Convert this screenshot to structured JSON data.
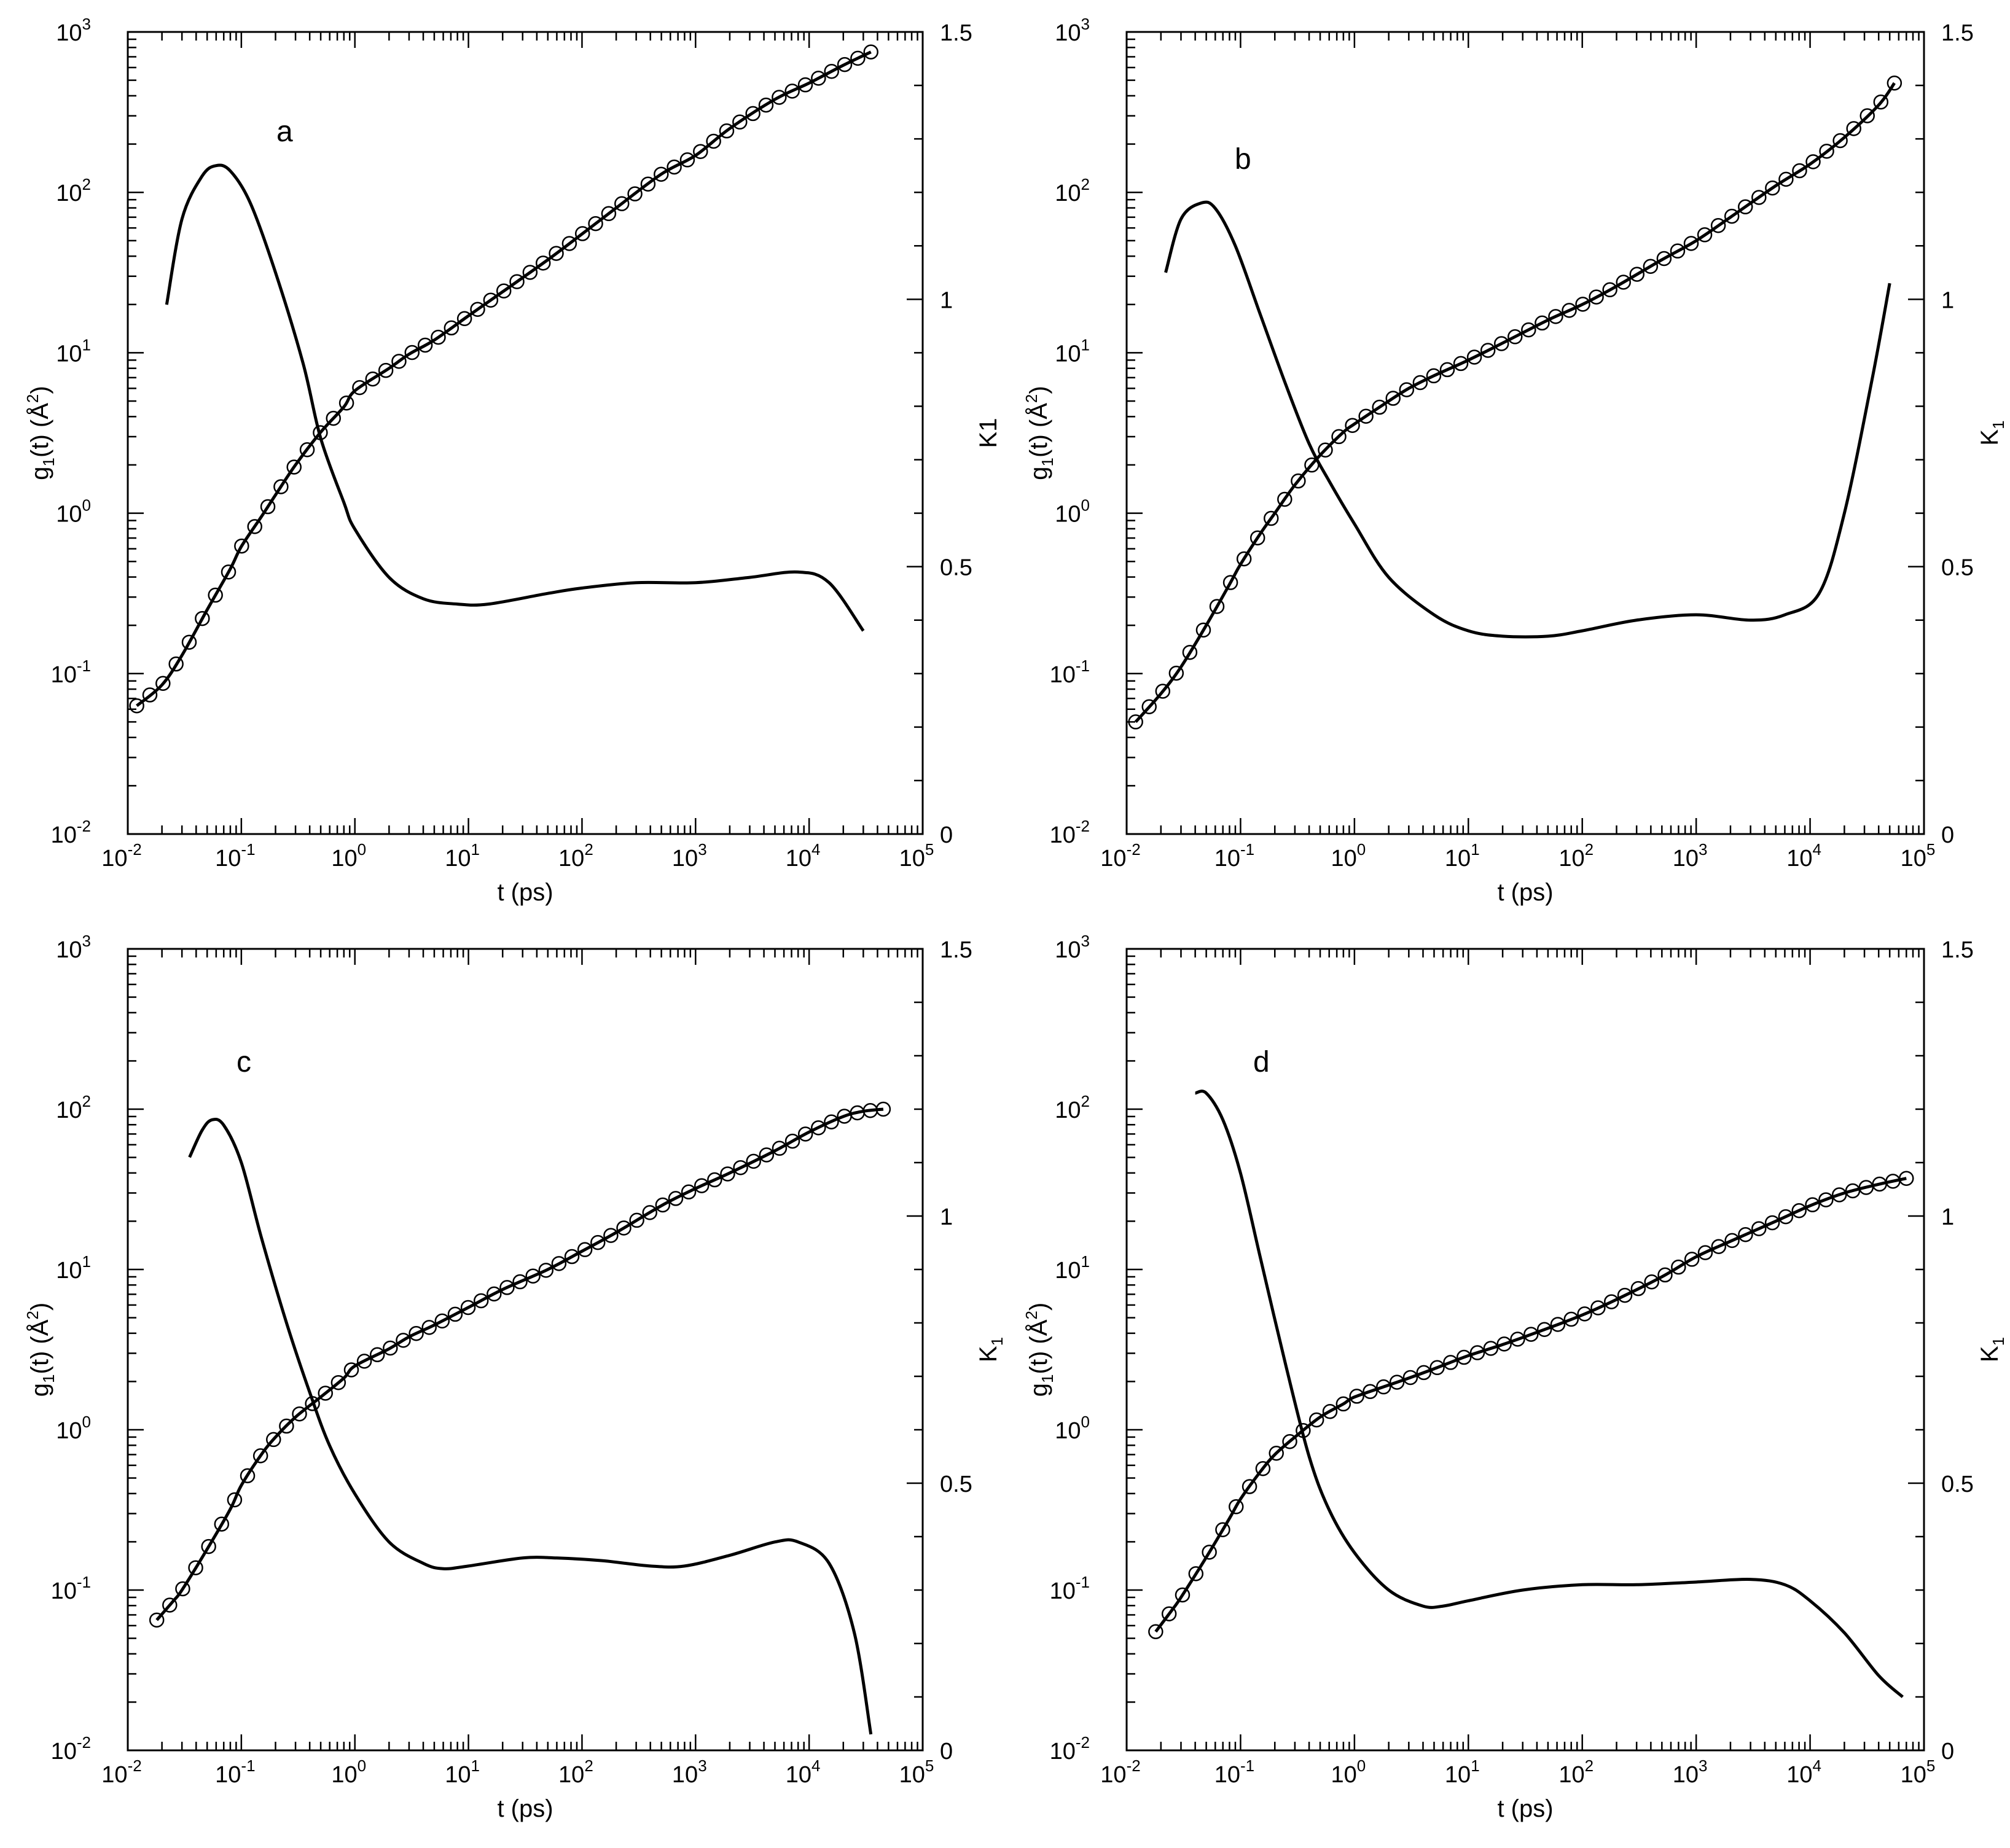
{
  "chart_data": [
    {
      "type": "line",
      "panel_label": "a",
      "x": {
        "label": "t (ps)",
        "scale": "log",
        "lim": [
          0.01,
          100000
        ],
        "ticks": [
          "10",
          "10",
          "10",
          "10",
          "10",
          "10",
          "10",
          "10"
        ],
        "tick_exponents": [
          "-2",
          "-1",
          "0",
          "1",
          "2",
          "3",
          "4",
          "5"
        ]
      },
      "y_left": {
        "label_main": "g",
        "label_sub": "1",
        "label_rest": "(t) (Å",
        "label_sup": "2",
        "label_end": ")",
        "scale": "log",
        "lim": [
          0.01,
          1000
        ],
        "tick_exponents": [
          "-2",
          "-1",
          "0",
          "1",
          "2",
          "3"
        ]
      },
      "y_right": {
        "label_main": "K1",
        "label_sub": "",
        "scale": "linear",
        "lim": [
          0,
          1.5
        ],
        "ticks": [
          "0",
          "0.5",
          "1",
          "1.5"
        ]
      },
      "series": [
        {
          "axis": "left",
          "style": "line-with-circles",
          "points": [
            [
              0.012,
              0.063
            ],
            [
              0.02,
              0.085
            ],
            [
              0.03,
              0.13
            ],
            [
              0.05,
              0.25
            ],
            [
              0.08,
              0.45
            ],
            [
              0.1,
              0.62
            ],
            [
              0.15,
              0.95
            ],
            [
              0.2,
              1.3
            ],
            [
              0.3,
              2.0
            ],
            [
              0.5,
              3.2
            ],
            [
              0.8,
              4.6
            ],
            [
              1,
              5.8
            ],
            [
              2,
              8.0
            ],
            [
              3,
              9.8
            ],
            [
              5,
              12
            ],
            [
              10,
              17
            ],
            [
              20,
              24
            ],
            [
              50,
              38
            ],
            [
              100,
              55
            ],
            [
              200,
              80
            ],
            [
              500,
              130
            ],
            [
              1000,
              170
            ],
            [
              2000,
              250
            ],
            [
              5000,
              380
            ],
            [
              10000,
              480
            ],
            [
              20000,
              620
            ],
            [
              35000,
              750
            ]
          ]
        },
        {
          "axis": "right",
          "style": "line",
          "points": [
            [
              0.022,
              0.99
            ],
            [
              0.03,
              1.15
            ],
            [
              0.045,
              1.23
            ],
            [
              0.06,
              1.25
            ],
            [
              0.08,
              1.24
            ],
            [
              0.12,
              1.18
            ],
            [
              0.2,
              1.05
            ],
            [
              0.35,
              0.88
            ],
            [
              0.5,
              0.74
            ],
            [
              0.8,
              0.62
            ],
            [
              1,
              0.57
            ],
            [
              2,
              0.48
            ],
            [
              4,
              0.44
            ],
            [
              8,
              0.43
            ],
            [
              15,
              0.43
            ],
            [
              50,
              0.45
            ],
            [
              100,
              0.46
            ],
            [
              300,
              0.47
            ],
            [
              1000,
              0.47
            ],
            [
              3000,
              0.48
            ],
            [
              8000,
              0.49
            ],
            [
              15000,
              0.47
            ],
            [
              30000,
              0.38
            ]
          ]
        }
      ]
    },
    {
      "type": "line",
      "panel_label": "b",
      "x": {
        "label": "t (ps)",
        "scale": "log",
        "lim": [
          0.01,
          100000
        ],
        "tick_exponents": [
          "-2",
          "-1",
          "0",
          "1",
          "2",
          "3",
          "4",
          "5"
        ]
      },
      "y_left": {
        "label_main": "g",
        "label_sub": "1",
        "label_rest": "(t) (Å",
        "label_sup": "2",
        "label_end": ")",
        "scale": "log",
        "lim": [
          0.01,
          1000
        ],
        "tick_exponents": [
          "-2",
          "-1",
          "0",
          "1",
          "2",
          "3"
        ]
      },
      "y_right": {
        "label_main": "K",
        "label_sub": "1",
        "scale": "linear",
        "lim": [
          0,
          1.5
        ],
        "ticks": [
          "0",
          "0.5",
          "1",
          "1.5"
        ]
      },
      "series": [
        {
          "axis": "left",
          "style": "line-with-circles",
          "points": [
            [
              0.012,
              0.05
            ],
            [
              0.02,
              0.075
            ],
            [
              0.03,
              0.11
            ],
            [
              0.05,
              0.2
            ],
            [
              0.08,
              0.36
            ],
            [
              0.1,
              0.48
            ],
            [
              0.15,
              0.75
            ],
            [
              0.2,
              1.0
            ],
            [
              0.3,
              1.5
            ],
            [
              0.5,
              2.3
            ],
            [
              0.8,
              3.2
            ],
            [
              1,
              3.6
            ],
            [
              2,
              5.0
            ],
            [
              3,
              6.0
            ],
            [
              5,
              7.2
            ],
            [
              10,
              9.0
            ],
            [
              20,
              11.5
            ],
            [
              50,
              16
            ],
            [
              100,
              20
            ],
            [
              200,
              26
            ],
            [
              500,
              38
            ],
            [
              1000,
              50
            ],
            [
              2000,
              70
            ],
            [
              5000,
              110
            ],
            [
              10000,
              150
            ],
            [
              20000,
              220
            ],
            [
              40000,
              350
            ],
            [
              55000,
              480
            ]
          ]
        },
        {
          "axis": "right",
          "style": "line",
          "points": [
            [
              0.022,
              1.05
            ],
            [
              0.03,
              1.15
            ],
            [
              0.045,
              1.18
            ],
            [
              0.06,
              1.17
            ],
            [
              0.09,
              1.1
            ],
            [
              0.15,
              0.97
            ],
            [
              0.25,
              0.84
            ],
            [
              0.4,
              0.73
            ],
            [
              0.6,
              0.66
            ],
            [
              1,
              0.58
            ],
            [
              2,
              0.48
            ],
            [
              5,
              0.41
            ],
            [
              10,
              0.38
            ],
            [
              20,
              0.37
            ],
            [
              50,
              0.37
            ],
            [
              100,
              0.38
            ],
            [
              300,
              0.4
            ],
            [
              1000,
              0.41
            ],
            [
              3000,
              0.4
            ],
            [
              6000,
              0.41
            ],
            [
              12000,
              0.45
            ],
            [
              20000,
              0.6
            ],
            [
              35000,
              0.85
            ],
            [
              50000,
              1.03
            ]
          ]
        }
      ]
    },
    {
      "type": "line",
      "panel_label": "c",
      "x": {
        "label": "t (ps)",
        "scale": "log",
        "lim": [
          0.01,
          100000
        ],
        "tick_exponents": [
          "-2",
          "-1",
          "0",
          "1",
          "2",
          "3",
          "4",
          "5"
        ]
      },
      "y_left": {
        "label_main": "g",
        "label_sub": "1",
        "label_rest": "(t) (Å",
        "label_sup": "2",
        "label_end": ")",
        "scale": "log",
        "lim": [
          0.01,
          1000
        ],
        "tick_exponents": [
          "-2",
          "-1",
          "0",
          "1",
          "2",
          "3"
        ]
      },
      "y_right": {
        "label_main": "K",
        "label_sub": "1",
        "scale": "linear",
        "lim": [
          0,
          1.5
        ],
        "ticks": [
          "0",
          "0.5",
          "1",
          "1.5"
        ]
      },
      "series": [
        {
          "axis": "left",
          "style": "line-with-circles",
          "points": [
            [
              0.018,
              0.065
            ],
            [
              0.025,
              0.085
            ],
            [
              0.03,
              0.1
            ],
            [
              0.05,
              0.18
            ],
            [
              0.08,
              0.32
            ],
            [
              0.1,
              0.45
            ],
            [
              0.15,
              0.7
            ],
            [
              0.2,
              0.9
            ],
            [
              0.3,
              1.2
            ],
            [
              0.5,
              1.6
            ],
            [
              0.8,
              2.1
            ],
            [
              1,
              2.5
            ],
            [
              2,
              3.2
            ],
            [
              3,
              3.8
            ],
            [
              5,
              4.5
            ],
            [
              10,
              5.8
            ],
            [
              20,
              7.5
            ],
            [
              50,
              10
            ],
            [
              100,
              13
            ],
            [
              200,
              17
            ],
            [
              500,
              25
            ],
            [
              1000,
              32
            ],
            [
              2000,
              40
            ],
            [
              5000,
              55
            ],
            [
              10000,
              72
            ],
            [
              20000,
              90
            ],
            [
              30000,
              97
            ],
            [
              45000,
              100
            ]
          ]
        },
        {
          "axis": "right",
          "style": "line",
          "points": [
            [
              0.035,
              1.11
            ],
            [
              0.045,
              1.16
            ],
            [
              0.055,
              1.18
            ],
            [
              0.07,
              1.17
            ],
            [
              0.1,
              1.1
            ],
            [
              0.15,
              0.96
            ],
            [
              0.25,
              0.8
            ],
            [
              0.4,
              0.67
            ],
            [
              0.6,
              0.57
            ],
            [
              1,
              0.48
            ],
            [
              2,
              0.39
            ],
            [
              4,
              0.35
            ],
            [
              6,
              0.34
            ],
            [
              10,
              0.345
            ],
            [
              30,
              0.36
            ],
            [
              60,
              0.36
            ],
            [
              150,
              0.355
            ],
            [
              400,
              0.345
            ],
            [
              800,
              0.345
            ],
            [
              2000,
              0.365
            ],
            [
              5000,
              0.39
            ],
            [
              8000,
              0.39
            ],
            [
              15000,
              0.35
            ],
            [
              25000,
              0.22
            ],
            [
              35000,
              0.03
            ]
          ]
        }
      ]
    },
    {
      "type": "line",
      "panel_label": "d",
      "x": {
        "label": "t (ps)",
        "scale": "log",
        "lim": [
          0.01,
          100000
        ],
        "tick_exponents": [
          "-2",
          "-1",
          "0",
          "1",
          "2",
          "3",
          "4",
          "5"
        ]
      },
      "y_left": {
        "label_main": "g",
        "label_sub": "1",
        "label_rest": "(t) (Å",
        "label_sup": "2",
        "label_end": ")",
        "scale": "log",
        "lim": [
          0.01,
          1000
        ],
        "tick_exponents": [
          "-2",
          "-1",
          "0",
          "1",
          "2",
          "3"
        ]
      },
      "y_right": {
        "label_main": "K",
        "label_sub": "1",
        "scale": "linear",
        "lim": [
          0,
          1.5
        ],
        "ticks": [
          "0",
          "0.5",
          "1",
          "1.5"
        ]
      },
      "series": [
        {
          "axis": "left",
          "style": "line-with-circles",
          "points": [
            [
              0.018,
              0.055
            ],
            [
              0.025,
              0.075
            ],
            [
              0.03,
              0.09
            ],
            [
              0.05,
              0.16
            ],
            [
              0.08,
              0.28
            ],
            [
              0.1,
              0.37
            ],
            [
              0.15,
              0.55
            ],
            [
              0.2,
              0.7
            ],
            [
              0.3,
              0.9
            ],
            [
              0.5,
              1.2
            ],
            [
              0.8,
              1.45
            ],
            [
              1,
              1.6
            ],
            [
              2,
              1.9
            ],
            [
              3,
              2.1
            ],
            [
              5,
              2.4
            ],
            [
              10,
              2.9
            ],
            [
              20,
              3.4
            ],
            [
              50,
              4.3
            ],
            [
              100,
              5.2
            ],
            [
              200,
              6.5
            ],
            [
              500,
              9
            ],
            [
              1000,
              12
            ],
            [
              2000,
              15
            ],
            [
              5000,
              20
            ],
            [
              10000,
              25
            ],
            [
              20000,
              30
            ],
            [
              40000,
              34
            ],
            [
              70000,
              37
            ]
          ]
        },
        {
          "axis": "right",
          "style": "line",
          "points": [
            [
              0.04,
              1.23
            ],
            [
              0.05,
              1.23
            ],
            [
              0.07,
              1.18
            ],
            [
              0.1,
              1.08
            ],
            [
              0.15,
              0.92
            ],
            [
              0.25,
              0.72
            ],
            [
              0.4,
              0.55
            ],
            [
              0.6,
              0.45
            ],
            [
              1,
              0.37
            ],
            [
              2,
              0.3
            ],
            [
              4,
              0.27
            ],
            [
              6,
              0.27
            ],
            [
              10,
              0.28
            ],
            [
              30,
              0.3
            ],
            [
              100,
              0.31
            ],
            [
              300,
              0.31
            ],
            [
              1000,
              0.315
            ],
            [
              3000,
              0.32
            ],
            [
              6000,
              0.31
            ],
            [
              10000,
              0.28
            ],
            [
              20000,
              0.22
            ],
            [
              40000,
              0.14
            ],
            [
              65000,
              0.1
            ]
          ]
        }
      ]
    }
  ]
}
